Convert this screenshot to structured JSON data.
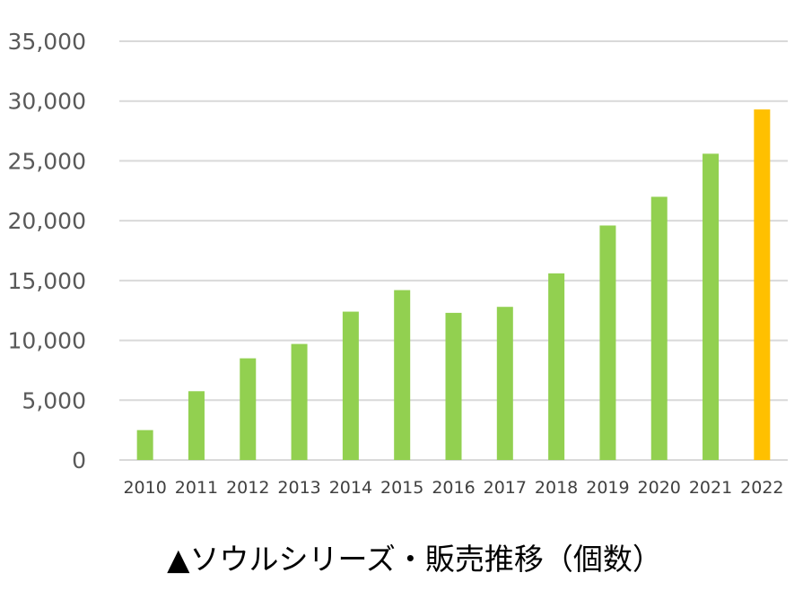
{
  "chart_data": {
    "type": "bar",
    "title": "▲ソウルシリーズ・販売推移（個数）",
    "categories": [
      "2010",
      "2011",
      "2012",
      "2013",
      "2014",
      "2015",
      "2016",
      "2017",
      "2018",
      "2019",
      "2020",
      "2021",
      "2022"
    ],
    "values": [
      2500,
      5750,
      8500,
      9700,
      12400,
      14200,
      12300,
      12800,
      15600,
      19600,
      22000,
      25600,
      29300
    ],
    "ylim": [
      0,
      35000
    ],
    "yticks": [
      "0",
      "5,000",
      "10,000",
      "15,000",
      "20,000",
      "25,000",
      "30,000",
      "35,000"
    ],
    "grid": true,
    "colors": {
      "bar": "#92d050",
      "highlight": "#ffc000",
      "grid": "#d9d9d9"
    },
    "highlight_category": "2022"
  }
}
